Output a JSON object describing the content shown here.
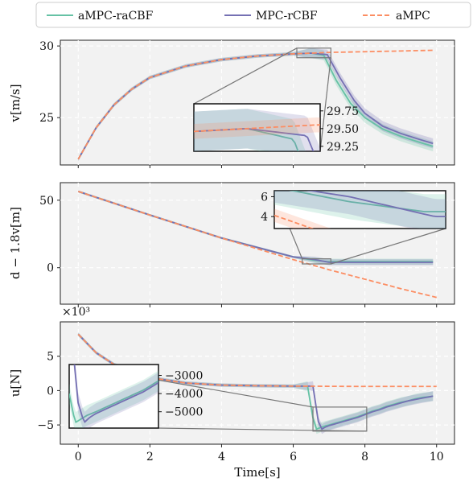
{
  "legend": {
    "items": [
      {
        "label": "aMPC-raCBF",
        "color": "#66c2a5",
        "style": "solid"
      },
      {
        "label": "MPC-rCBF",
        "color": "#7570b3",
        "style": "solid"
      },
      {
        "label": "aMPC",
        "color": "#fc8d62",
        "style": "dashed"
      }
    ],
    "placement": "top-center"
  },
  "chart_data": [
    {
      "type": "line",
      "panel": "velocity",
      "ylabel": "v[m/s]",
      "xlim": [
        -0.5,
        10.5
      ],
      "ylim": [
        21.7,
        30.4
      ],
      "xticks": [
        0,
        2,
        4,
        6,
        8,
        10
      ],
      "yticks": [
        25,
        30
      ],
      "ytick_labels": [
        "25",
        "30"
      ],
      "grid": true,
      "series": [
        {
          "name": "aMPC-raCBF",
          "x": [
            0,
            0.5,
            1,
            1.5,
            2,
            3,
            4,
            5,
            6,
            6.5,
            6.85,
            7.2,
            7.6,
            8,
            8.5,
            9,
            9.5,
            9.9
          ],
          "y": [
            22.1,
            24.3,
            25.9,
            27.0,
            27.8,
            28.6,
            29.05,
            29.3,
            29.45,
            29.5,
            29.35,
            27.6,
            26.0,
            25.0,
            24.2,
            23.7,
            23.3,
            23.0
          ]
        },
        {
          "name": "MPC-rCBF",
          "x": [
            0,
            0.5,
            1,
            1.5,
            2,
            3,
            4,
            5,
            6,
            6.5,
            6.95,
            7.3,
            7.7,
            8,
            8.5,
            9,
            9.5,
            9.9
          ],
          "y": [
            22.1,
            24.3,
            25.9,
            27.0,
            27.8,
            28.6,
            29.05,
            29.3,
            29.45,
            29.5,
            29.4,
            27.8,
            26.2,
            25.3,
            24.4,
            23.9,
            23.5,
            23.2
          ]
        },
        {
          "name": "aMPC",
          "x": [
            0,
            0.5,
            1,
            1.5,
            2,
            3,
            4,
            5,
            6,
            7,
            8,
            9,
            9.9
          ],
          "y": [
            22.1,
            24.3,
            25.9,
            27.0,
            27.8,
            28.6,
            29.05,
            29.3,
            29.45,
            29.55,
            29.6,
            29.65,
            29.7
          ]
        }
      ],
      "inset": {
        "xlim": [
          6.1,
          7.05
        ],
        "ylim": [
          29.18,
          29.85
        ],
        "yticks": [
          29.25,
          29.5,
          29.75
        ],
        "ytick_labels": [
          "29.25",
          "29.50",
          "29.75"
        ]
      }
    },
    {
      "type": "line",
      "panel": "distance",
      "ylabel": "d − 1.8v[m]",
      "xlim": [
        -0.5,
        10.5
      ],
      "ylim": [
        -27,
        63
      ],
      "xticks": [
        0,
        2,
        4,
        6,
        8,
        10
      ],
      "yticks": [
        0,
        50
      ],
      "ytick_labels": [
        "0",
        "50"
      ],
      "grid": true,
      "series": [
        {
          "name": "aMPC-raCBF",
          "x": [
            0,
            2,
            4,
            6,
            6.6,
            6.95,
            7.5,
            8,
            9,
            9.9
          ],
          "y": [
            56.5,
            39.0,
            22.0,
            8.0,
            5.5,
            4.5,
            4.5,
            4.5,
            4.5,
            4.5
          ]
        },
        {
          "name": "MPC-rCBF",
          "x": [
            0,
            2,
            4,
            6,
            6.6,
            7.0,
            7.5,
            8,
            9,
            9.9
          ],
          "y": [
            56.5,
            39.0,
            22.0,
            8.0,
            6.0,
            4.0,
            4.0,
            4.0,
            4.0,
            4.0
          ]
        },
        {
          "name": "aMPC",
          "x": [
            0,
            2,
            4,
            6,
            7,
            8,
            9,
            10
          ],
          "y": [
            56.5,
            39.0,
            22.0,
            6.0,
            -1.5,
            -8.5,
            -15.5,
            -22.0
          ]
        }
      ],
      "inset": {
        "xlim": [
          6.25,
          7.05
        ],
        "ylim": [
          2.8,
          6.6
        ],
        "yticks": [
          4,
          6
        ],
        "ytick_labels": [
          "4",
          "6"
        ]
      }
    },
    {
      "type": "line",
      "panel": "input",
      "ylabel": "u[N]",
      "xlabel": "Time[s]",
      "multiplier": "×10³",
      "xlim": [
        -0.5,
        10.5
      ],
      "ylim": [
        -7.8,
        10.0
      ],
      "xticks": [
        0,
        2,
        4,
        6,
        8,
        10
      ],
      "xtick_labels": [
        "0",
        "2",
        "4",
        "6",
        "8",
        "10"
      ],
      "yticks": [
        -5,
        0,
        5
      ],
      "ytick_labels": [
        "−5",
        "0",
        "5"
      ],
      "grid": true,
      "series": [
        {
          "name": "aMPC-raCBF",
          "x": [
            0,
            0.5,
            1,
            2,
            3,
            4,
            5,
            6,
            6.4,
            6.55,
            6.65,
            6.75,
            6.85,
            7.0,
            7.2,
            7.4,
            7.6,
            7.8,
            8.0,
            8.2,
            8.4,
            8.6,
            8.8,
            9.0,
            9.2,
            9.4,
            9.6,
            9.8,
            9.9
          ],
          "y": [
            8.2,
            5.5,
            3.8,
            1.9,
            1.1,
            0.8,
            0.7,
            0.65,
            0.65,
            -4.0,
            -5.6,
            -5.4,
            -5.2,
            -5.0,
            -4.7,
            -4.4,
            -4.1,
            -3.8,
            -3.4,
            -3.0,
            -2.7,
            -2.3,
            -2.0,
            -1.7,
            -1.5,
            -1.2,
            -1.0,
            -0.9,
            -0.8
          ]
        },
        {
          "name": "MPC-rCBF",
          "x": [
            0,
            0.5,
            1,
            2,
            3,
            4,
            5,
            6,
            6.55,
            6.7,
            6.8,
            6.9,
            7.0,
            7.2,
            7.4,
            7.6,
            7.8,
            8.0,
            8.2,
            8.4,
            8.6,
            8.8,
            9.0,
            9.2,
            9.4,
            9.6,
            9.8,
            9.9
          ],
          "y": [
            8.2,
            5.5,
            3.8,
            1.9,
            1.1,
            0.8,
            0.7,
            0.65,
            0.65,
            -4.5,
            -5.6,
            -5.3,
            -5.1,
            -4.8,
            -4.5,
            -4.2,
            -3.9,
            -3.5,
            -3.1,
            -2.8,
            -2.4,
            -2.1,
            -1.8,
            -1.5,
            -1.3,
            -1.1,
            -0.9,
            -0.8
          ]
        },
        {
          "name": "aMPC",
          "x": [
            0,
            0.5,
            1,
            2,
            3,
            4,
            5,
            6,
            7,
            8,
            9,
            10
          ],
          "y": [
            8.2,
            5.5,
            3.8,
            1.9,
            1.1,
            0.8,
            0.7,
            0.65,
            0.62,
            0.6,
            0.6,
            0.6
          ]
        }
      ],
      "inset": {
        "xlim": [
          6.55,
          8.05
        ],
        "ylim": [
          -5900,
          -2400
        ],
        "yticks": [
          -3000,
          -4000,
          -5000
        ],
        "ytick_labels": [
          "−3000",
          "−4000",
          "−5000"
        ]
      }
    }
  ]
}
